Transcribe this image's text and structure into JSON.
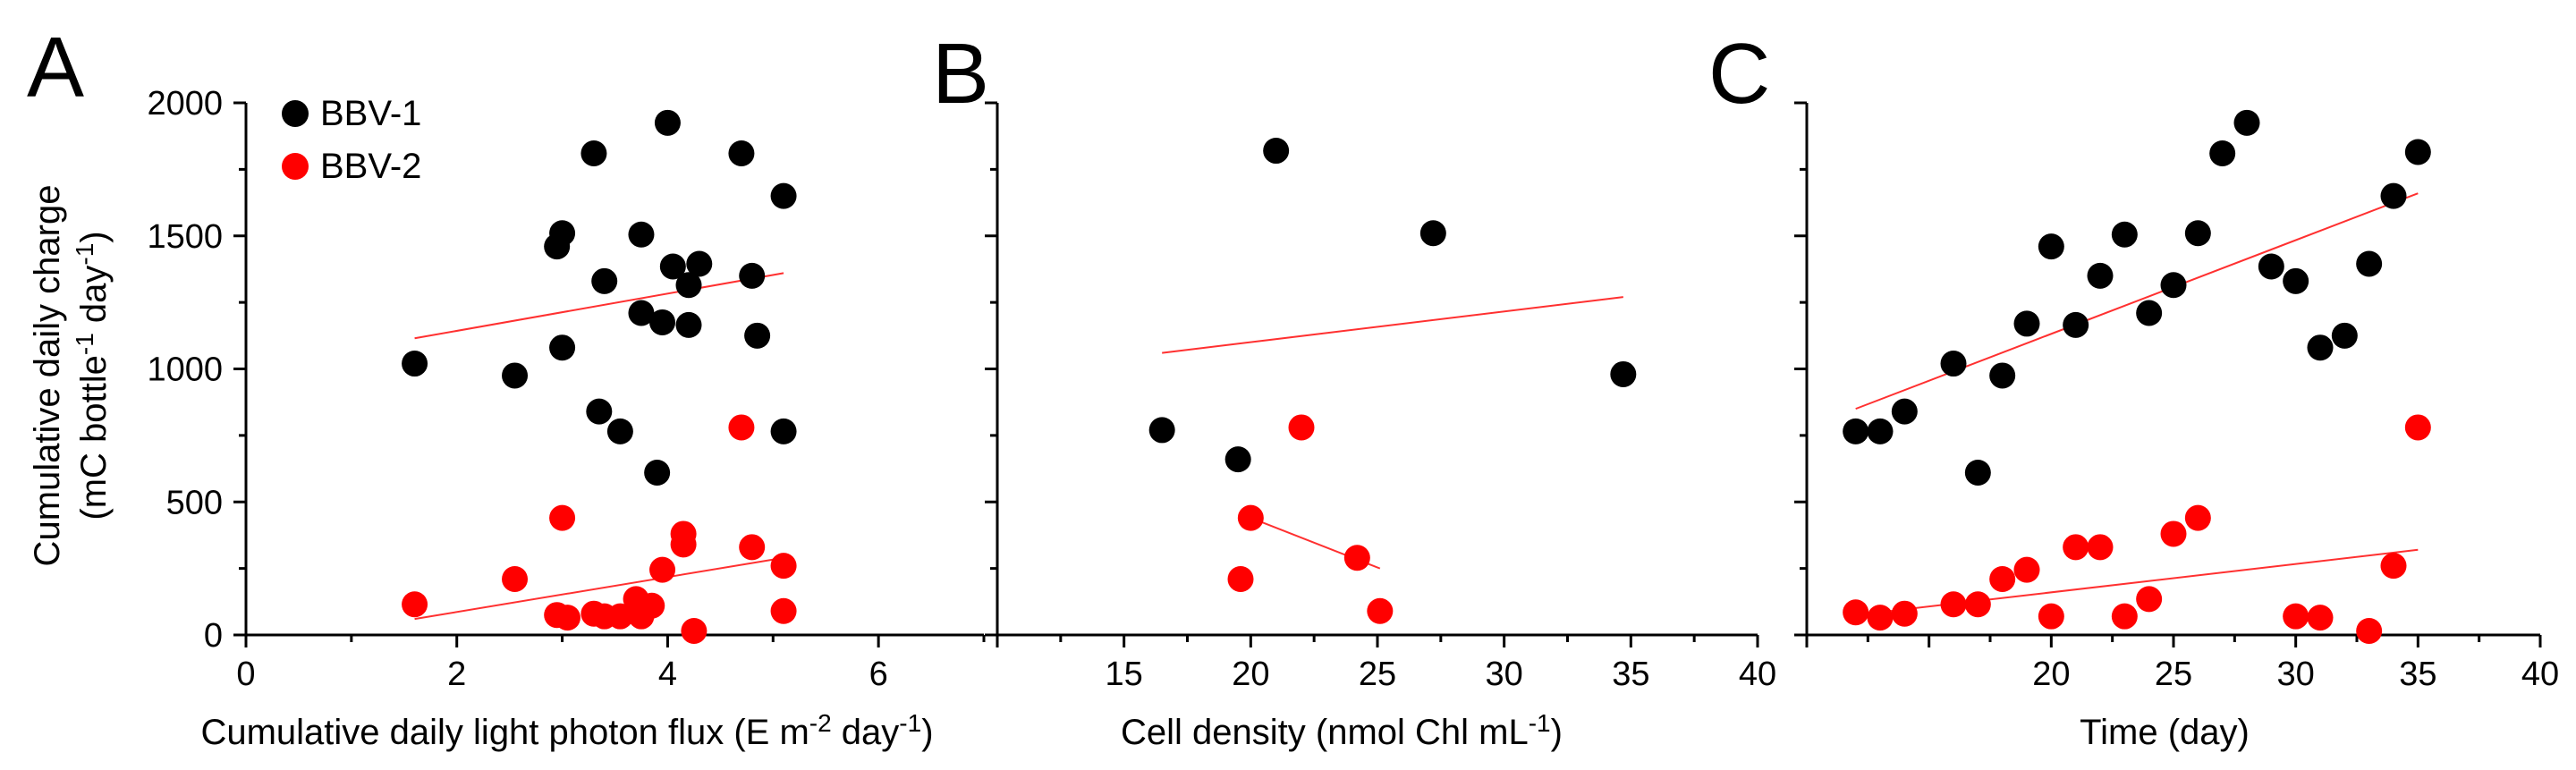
{
  "chart_data": [
    {
      "panel": "A",
      "type": "scatter",
      "xlabel": "Cumulative daily light photon flux (E m-2 day-1)",
      "xlabel_parts": {
        "pre": "Cumulative daily light photon flux (E m",
        "sup1": "-2",
        "mid": " day",
        "sup2": "-1",
        "post": ")"
      },
      "ylabel_line1": "Cumulative daily charge",
      "ylabel_line2_parts": {
        "pre": "(mC bottle",
        "sup1": "-1",
        "mid": " day",
        "sup2": "-1",
        "post": ")"
      },
      "xlim": [
        0,
        7
      ],
      "ylim": [
        0,
        2000
      ],
      "xticks": [
        0,
        2,
        4,
        6
      ],
      "yticks": [
        0,
        500,
        1000,
        1500,
        2000
      ],
      "legend": [
        "BBV-1",
        "BBV-2"
      ],
      "series": [
        {
          "name": "BBV-1",
          "color": "#000000",
          "points": [
            [
              1.6,
              1020
            ],
            [
              2.55,
              975
            ],
            [
              2.95,
              1460
            ],
            [
              3.0,
              1510
            ],
            [
              3.0,
              1080
            ],
            [
              3.3,
              1810
            ],
            [
              3.35,
              840
            ],
            [
              3.4,
              1330
            ],
            [
              3.55,
              765
            ],
            [
              3.75,
              1210
            ],
            [
              3.75,
              1505
            ],
            [
              3.9,
              610
            ],
            [
              3.95,
              1175
            ],
            [
              4.0,
              1925
            ],
            [
              4.05,
              1385
            ],
            [
              4.2,
              1165
            ],
            [
              4.2,
              1315
            ],
            [
              4.3,
              1395
            ],
            [
              4.7,
              1810
            ],
            [
              4.8,
              1350
            ],
            [
              4.85,
              1125
            ],
            [
              5.1,
              1650
            ],
            [
              5.1,
              765
            ]
          ],
          "trend": [
            [
              1.6,
              1115
            ],
            [
              5.1,
              1360
            ]
          ]
        },
        {
          "name": "BBV-2",
          "color": "#ff0000",
          "points": [
            [
              1.6,
              115
            ],
            [
              2.55,
              210
            ],
            [
              2.95,
              75
            ],
            [
              3.0,
              440
            ],
            [
              3.05,
              65
            ],
            [
              3.3,
              80
            ],
            [
              3.4,
              70
            ],
            [
              3.55,
              70
            ],
            [
              3.7,
              135
            ],
            [
              3.75,
              70
            ],
            [
              3.85,
              110
            ],
            [
              3.95,
              245
            ],
            [
              4.15,
              340
            ],
            [
              4.15,
              380
            ],
            [
              4.25,
              15
            ],
            [
              4.7,
              780
            ],
            [
              4.8,
              330
            ],
            [
              5.1,
              260
            ],
            [
              5.1,
              90
            ]
          ],
          "trend": [
            [
              1.6,
              60
            ],
            [
              5.1,
              290
            ]
          ]
        }
      ]
    },
    {
      "panel": "B",
      "type": "scatter",
      "xlabel": "Cell density (nmol Chl mL-1)",
      "xlabel_parts": {
        "pre": "Cell density (nmol Chl mL",
        "sup1": "-1",
        "post": ")"
      },
      "xlim": [
        10,
        40
      ],
      "ylim": [
        0,
        2000
      ],
      "xticks": [
        15,
        20,
        25,
        30,
        35,
        40
      ],
      "series": [
        {
          "name": "BBV-1",
          "color": "#000000",
          "points": [
            [
              16.5,
              770
            ],
            [
              19.5,
              660
            ],
            [
              21,
              1820
            ],
            [
              27.2,
              1510
            ],
            [
              34.7,
              980
            ]
          ],
          "trend": [
            [
              16.5,
              1060
            ],
            [
              34.7,
              1270
            ]
          ]
        },
        {
          "name": "BBV-2",
          "color": "#ff0000",
          "points": [
            [
              19.6,
              210
            ],
            [
              20,
              440
            ],
            [
              22,
              780
            ],
            [
              24.2,
              290
            ],
            [
              25.1,
              90
            ]
          ],
          "trend": [
            [
              20,
              440
            ],
            [
              25.1,
              250
            ]
          ]
        }
      ]
    },
    {
      "panel": "C",
      "type": "scatter",
      "xlabel": "Time (day)",
      "xlim": [
        10,
        40
      ],
      "ylim": [
        0,
        2000
      ],
      "xticks": [
        20,
        25,
        30,
        35,
        40
      ],
      "series": [
        {
          "name": "BBV-1",
          "color": "#000000",
          "points": [
            [
              12,
              765
            ],
            [
              13,
              765
            ],
            [
              14,
              840
            ],
            [
              16,
              1020
            ],
            [
              17,
              610
            ],
            [
              18,
              975
            ],
            [
              19,
              1170
            ],
            [
              20,
              1460
            ],
            [
              21,
              1165
            ],
            [
              22,
              1350
            ],
            [
              23,
              1505
            ],
            [
              24,
              1210
            ],
            [
              25,
              1315
            ],
            [
              26,
              1510
            ],
            [
              27,
              1810
            ],
            [
              28,
              1925
            ],
            [
              29,
              1385
            ],
            [
              30,
              1330
            ],
            [
              31,
              1080
            ],
            [
              32,
              1125
            ],
            [
              33,
              1395
            ],
            [
              34,
              1650
            ],
            [
              35,
              1815
            ]
          ],
          "trend": [
            [
              12,
              850
            ],
            [
              35,
              1660
            ]
          ]
        },
        {
          "name": "BBV-2",
          "color": "#ff0000",
          "points": [
            [
              12,
              85
            ],
            [
              13,
              65
            ],
            [
              14,
              80
            ],
            [
              16,
              115
            ],
            [
              17,
              115
            ],
            [
              18,
              210
            ],
            [
              19,
              245
            ],
            [
              20,
              70
            ],
            [
              21,
              330
            ],
            [
              22,
              330
            ],
            [
              23,
              70
            ],
            [
              24,
              135
            ],
            [
              25,
              380
            ],
            [
              26,
              440
            ],
            [
              30,
              70
            ],
            [
              31,
              65
            ],
            [
              33,
              15
            ],
            [
              34,
              260
            ],
            [
              35,
              780
            ]
          ],
          "trend": [
            [
              12,
              75
            ],
            [
              35,
              320
            ]
          ]
        }
      ]
    }
  ]
}
